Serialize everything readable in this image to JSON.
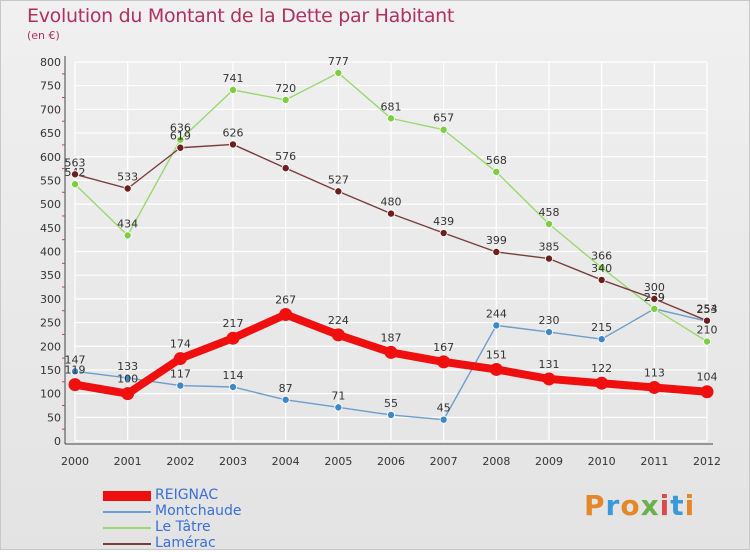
{
  "title": "Evolution du Montant de la Dette par Habitant",
  "subtitle": "(en €)",
  "logo_text": "Proxiti",
  "logo_colors": [
    "#e4872b",
    "#3a9ad9",
    "#e4872b",
    "#6ab04c",
    "#d94c4c",
    "#3a9ad9",
    "#e4872b"
  ],
  "chart_data": {
    "type": "line",
    "x": [
      "2000",
      "2001",
      "2002",
      "2003",
      "2004",
      "2005",
      "2006",
      "2007",
      "2008",
      "2009",
      "2010",
      "2011",
      "2012"
    ],
    "ylim": [
      0,
      800
    ],
    "yticks": [
      "0",
      "50",
      "100",
      "150",
      "200",
      "250",
      "300",
      "350",
      "400",
      "450",
      "500",
      "550",
      "600",
      "650",
      "700",
      "750",
      "800"
    ],
    "grid": true,
    "legend_position": "bottom-left",
    "series": [
      {
        "name": "Montchaude",
        "color": "#6c9dcc",
        "marker": "#3f88c5",
        "values": [
          147,
          133,
          117,
          114,
          87,
          71,
          55,
          45,
          244,
          230,
          215,
          279,
          253
        ],
        "labels": [
          "147",
          "133",
          "117",
          "114",
          "87",
          "71",
          "55",
          "45",
          "244",
          "230",
          "215",
          "279",
          "253"
        ]
      },
      {
        "name": "Le Tâtre",
        "color": "#99d86f",
        "marker": "#7ccf3e",
        "values": [
          542,
          434,
          636,
          741,
          720,
          777,
          681,
          657,
          568,
          458,
          366,
          279,
          210
        ],
        "labels": [
          "542",
          "434",
          "636",
          "741",
          "720",
          "777",
          "681",
          "657",
          "568",
          "458",
          "366",
          "279",
          "210"
        ]
      },
      {
        "name": "Lamérac",
        "color": "#7a3b3b",
        "marker": "#6b1f1f",
        "values": [
          563,
          533,
          619,
          626,
          576,
          527,
          480,
          439,
          399,
          385,
          340,
          300,
          254
        ],
        "labels": [
          "563",
          "533",
          "619",
          "626",
          "576",
          "527",
          "480",
          "439",
          "399",
          "385",
          "340",
          "300",
          "254"
        ]
      },
      {
        "name": "REIGNAC",
        "color": "#f00f0f",
        "marker": "#f00f0f",
        "values": [
          119,
          100,
          174,
          217,
          267,
          224,
          187,
          167,
          151,
          131,
          122,
          113,
          104
        ],
        "labels": [
          "119",
          "100",
          "174",
          "217",
          "267",
          "224",
          "187",
          "167",
          "151",
          "131",
          "122",
          "113",
          "104"
        ]
      }
    ]
  },
  "legend": [
    {
      "label": "REIGNAC",
      "color": "#f00f0f",
      "thick": true
    },
    {
      "label": "Montchaude",
      "color": "#6c9dcc",
      "thick": false
    },
    {
      "label": "Le Tâtre",
      "color": "#99d86f",
      "thick": false
    },
    {
      "label": "Lamérac",
      "color": "#7a3b3b",
      "thick": false
    }
  ]
}
